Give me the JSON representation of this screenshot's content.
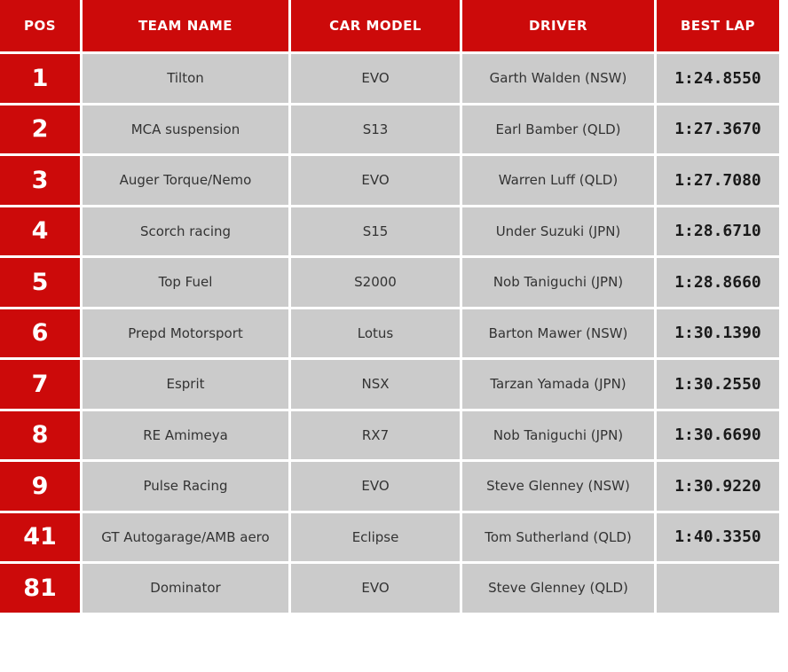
{
  "colors": {
    "accent_red": "#cc0a0a",
    "row_gray": "#cbcbcb",
    "divider_white": "#ffffff",
    "header_text": "#ffffff",
    "body_text": "#333333",
    "lap_text": "#1a1a1a"
  },
  "table": {
    "columns": [
      {
        "key": "pos",
        "label": "POS"
      },
      {
        "key": "team",
        "label": "TEAM NAME"
      },
      {
        "key": "car",
        "label": "CAR MODEL"
      },
      {
        "key": "driver",
        "label": "DRIVER"
      },
      {
        "key": "best_lap",
        "label": "BEST LAP"
      }
    ],
    "rows": [
      {
        "pos": "1",
        "team": "Tilton",
        "car": "EVO",
        "driver": "Garth Walden (NSW)",
        "best_lap": "1:24.8550"
      },
      {
        "pos": "2",
        "team": "MCA suspension",
        "car": "S13",
        "driver": "Earl Bamber (QLD)",
        "best_lap": "1:27.3670"
      },
      {
        "pos": "3",
        "team": "Auger Torque/Nemo",
        "car": "EVO",
        "driver": "Warren Luff (QLD)",
        "best_lap": "1:27.7080"
      },
      {
        "pos": "4",
        "team": "Scorch racing",
        "car": "S15",
        "driver": "Under Suzuki (JPN)",
        "best_lap": "1:28.6710"
      },
      {
        "pos": "5",
        "team": "Top Fuel",
        "car": "S2000",
        "driver": "Nob Taniguchi (JPN)",
        "best_lap": "1:28.8660"
      },
      {
        "pos": "6",
        "team": "Prepd Motorsport",
        "car": "Lotus",
        "driver": "Barton Mawer (NSW)",
        "best_lap": "1:30.1390"
      },
      {
        "pos": "7",
        "team": "Esprit",
        "car": "NSX",
        "driver": "Tarzan Yamada (JPN)",
        "best_lap": "1:30.2550"
      },
      {
        "pos": "8",
        "team": "RE Amimeya",
        "car": "RX7",
        "driver": "Nob Taniguchi (JPN)",
        "best_lap": "1:30.6690"
      },
      {
        "pos": "9",
        "team": "Pulse Racing",
        "car": "EVO",
        "driver": "Steve Glenney (NSW)",
        "best_lap": "1:30.9220"
      },
      {
        "pos": "41",
        "team": "GT Autogarage/AMB aero",
        "car": "Eclipse",
        "driver": "Tom Sutherland (QLD)",
        "best_lap": "1:40.3350"
      },
      {
        "pos": "81",
        "team": "Dominator",
        "car": "EVO",
        "driver": "Steve Glenney (QLD)",
        "best_lap": ""
      }
    ]
  }
}
